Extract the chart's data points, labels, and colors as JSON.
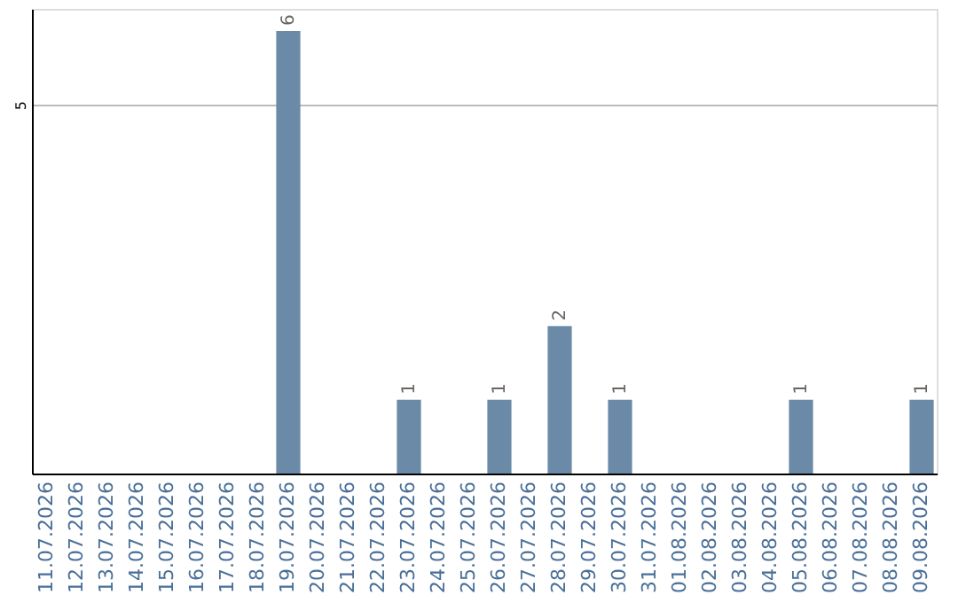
{
  "chart_data": {
    "type": "bar",
    "categories": [
      "11.07.2026",
      "12.07.2026",
      "13.07.2026",
      "14.07.2026",
      "15.07.2026",
      "16.07.2026",
      "17.07.2026",
      "18.07.2026",
      "19.07.2026",
      "20.07.2026",
      "21.07.2026",
      "22.07.2026",
      "23.07.2026",
      "24.07.2026",
      "25.07.2026",
      "26.07.2026",
      "27.07.2026",
      "28.07.2026",
      "29.07.2026",
      "30.07.2026",
      "31.07.2026",
      "01.08.2026",
      "02.08.2026",
      "03.08.2026",
      "04.08.2026",
      "05.08.2026",
      "06.08.2026",
      "07.08.2026",
      "08.08.2026",
      "09.08.2026"
    ],
    "values": [
      0,
      0,
      0,
      0,
      0,
      0,
      0,
      0,
      6,
      0,
      0,
      0,
      1,
      0,
      0,
      1,
      0,
      2,
      0,
      1,
      0,
      0,
      0,
      0,
      0,
      1,
      0,
      0,
      0,
      1
    ],
    "value_labels": [
      null,
      null,
      null,
      null,
      null,
      null,
      null,
      null,
      "6",
      null,
      null,
      null,
      "1",
      null,
      null,
      "1",
      null,
      "2",
      null,
      "1",
      null,
      null,
      null,
      null,
      null,
      "1",
      null,
      null,
      null,
      "1"
    ],
    "color": "#6a8aa8",
    "ylim": [
      0,
      6.3
    ],
    "yticks": [
      5
    ],
    "grid": "y"
  }
}
